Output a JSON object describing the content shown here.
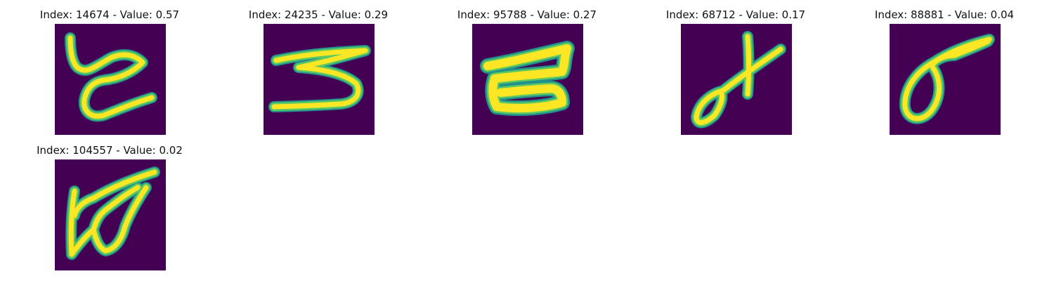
{
  "figure": {
    "colors": {
      "background": "#440154",
      "stroke_outer": "#21918c",
      "stroke_mid": "#5ec962",
      "stroke_inner": "#fde725"
    },
    "panels": [
      {
        "title": "Index: 14674 - Value: 0.57",
        "index": 14674,
        "value": 0.57,
        "glyph": "t-like-icon"
      },
      {
        "title": "Index: 24235 - Value: 0.29",
        "index": 24235,
        "value": 0.29,
        "glyph": "s-like-icon"
      },
      {
        "title": "Index: 95788 - Value: 0.27",
        "index": 95788,
        "value": 0.27,
        "glyph": "e-like-icon"
      },
      {
        "title": "Index: 68712 - Value: 0.17",
        "index": 68712,
        "value": 0.17,
        "glyph": "x-like-icon"
      },
      {
        "title": "Index: 88881 - Value: 0.04",
        "index": 88881,
        "value": 0.04,
        "glyph": "loop-like-icon"
      },
      {
        "title": "Index: 104557 - Value: 0.02",
        "index": 104557,
        "value": 0.02,
        "glyph": "w-like-icon"
      }
    ]
  }
}
